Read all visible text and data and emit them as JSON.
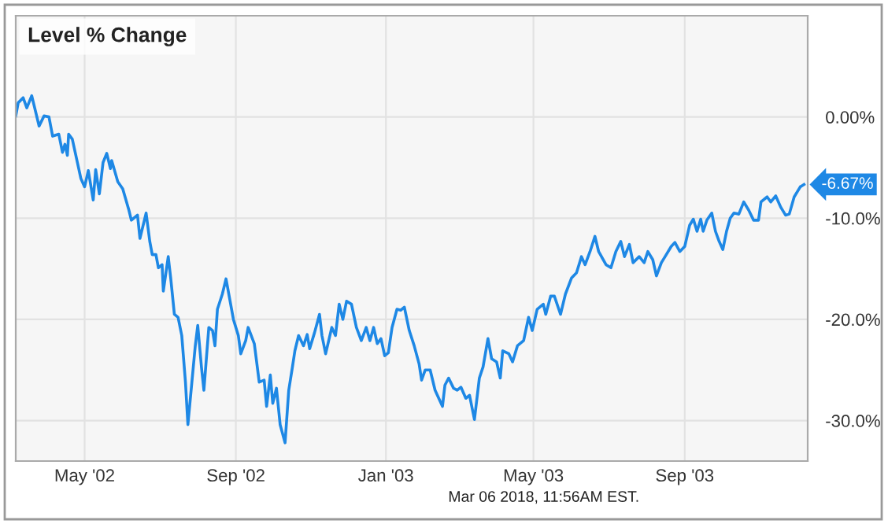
{
  "chart_data": {
    "type": "line",
    "title": "Level % Change",
    "annotations": [
      {
        "text": "-6.67%",
        "x": "2003-12-07",
        "y": -6.67
      },
      "Mar 06 2018, 11:56AM EST."
    ],
    "x": [
      "2002-03-06",
      "2002-03-08",
      "2002-03-12",
      "2002-03-15",
      "2002-03-19",
      "2002-03-25",
      "2002-03-29",
      "2002-04-02",
      "2002-04-05",
      "2002-04-10",
      "2002-04-13",
      "2002-04-15",
      "2002-04-17",
      "2002-04-18",
      "2002-04-21",
      "2002-04-28",
      "2002-05-01",
      "2002-05-04",
      "2002-05-08",
      "2002-05-10",
      "2002-05-13",
      "2002-05-16",
      "2002-05-19",
      "2002-05-22",
      "2002-05-23",
      "2002-05-28",
      "2002-06-01",
      "2002-06-06",
      "2002-06-08",
      "2002-06-13",
      "2002-06-15",
      "2002-06-20",
      "2002-06-23",
      "2002-06-25",
      "2002-06-28",
      "2002-06-30",
      "2002-07-03",
      "2002-07-04",
      "2002-07-08",
      "2002-07-10",
      "2002-07-13",
      "2002-07-16",
      "2002-07-19",
      "2002-07-22",
      "2002-07-24",
      "2002-07-27",
      "2002-07-30",
      "2002-08-01",
      "2002-08-04",
      "2002-08-06",
      "2002-08-10",
      "2002-08-13",
      "2002-08-15",
      "2002-08-17",
      "2002-08-21",
      "2002-08-24",
      "2002-08-27",
      "2002-08-30",
      "2002-09-03",
      "2002-09-05",
      "2002-09-09",
      "2002-09-11",
      "2002-09-16",
      "2002-09-20",
      "2002-09-24",
      "2002-09-26",
      "2002-09-29",
      "2002-10-01",
      "2002-10-04",
      "2002-10-07",
      "2002-10-11",
      "2002-10-14",
      "2002-10-17",
      "2002-10-19",
      "2002-10-22",
      "2002-10-26",
      "2002-10-29",
      "2002-10-31",
      "2002-11-04",
      "2002-11-08",
      "2002-11-10",
      "2002-11-13",
      "2002-11-18",
      "2002-11-21",
      "2002-11-24",
      "2002-11-27",
      "2002-11-30",
      "2002-12-04",
      "2002-12-08",
      "2002-12-12",
      "2002-12-16",
      "2002-12-19",
      "2002-12-22",
      "2002-12-25",
      "2002-12-28",
      "2002-12-31",
      "2003-01-03",
      "2003-01-06",
      "2003-01-10",
      "2003-01-13",
      "2003-01-16",
      "2003-01-20",
      "2003-01-24",
      "2003-01-28",
      "2003-01-30",
      "2003-02-02",
      "2003-02-06",
      "2003-02-10",
      "2003-02-16",
      "2003-02-18",
      "2003-02-21",
      "2003-02-25",
      "2003-02-28",
      "2003-03-03",
      "2003-03-07",
      "2003-03-10",
      "2003-03-14",
      "2003-03-18",
      "2003-03-21",
      "2003-03-25",
      "2003-03-28",
      "2003-04-01",
      "2003-04-04",
      "2003-04-06",
      "2003-04-11",
      "2003-04-14",
      "2003-04-18",
      "2003-04-23",
      "2003-04-27",
      "2003-04-30",
      "2003-05-04",
      "2003-05-09",
      "2003-05-11",
      "2003-05-15",
      "2003-05-18",
      "2003-05-23",
      "2003-05-27",
      "2003-06-01",
      "2003-06-05",
      "2003-06-09",
      "2003-06-12",
      "2003-06-16",
      "2003-06-20",
      "2003-06-23",
      "2003-06-29",
      "2003-07-03",
      "2003-07-07",
      "2003-07-11",
      "2003-07-14",
      "2003-07-18",
      "2003-07-21",
      "2003-07-26",
      "2003-07-30",
      "2003-08-02",
      "2003-08-06",
      "2003-08-09",
      "2003-08-13",
      "2003-08-17",
      "2003-08-21",
      "2003-08-24",
      "2003-08-28",
      "2003-09-01",
      "2003-09-05",
      "2003-09-08",
      "2003-09-11",
      "2003-09-14",
      "2003-09-16",
      "2003-09-19",
      "2003-09-23",
      "2003-09-26",
      "2003-09-29",
      "2003-10-02",
      "2003-10-05",
      "2003-10-08",
      "2003-10-11",
      "2003-10-15",
      "2003-10-19",
      "2003-10-23",
      "2003-10-27",
      "2003-10-31",
      "2003-11-02",
      "2003-11-07",
      "2003-11-10",
      "2003-11-14",
      "2003-11-18",
      "2003-11-22",
      "2003-11-25",
      "2003-11-29",
      "2003-12-04",
      "2003-12-07"
    ],
    "series": [
      {
        "color": "#1e88e5",
        "values": [
          0.1,
          1.4,
          1.9,
          0.9,
          2.1,
          -0.9,
          0.1,
          0,
          -1.9,
          -1.7,
          -3.5,
          -2.7,
          -3.8,
          -1.7,
          -2.2,
          -6.1,
          -6.9,
          -5.3,
          -8.2,
          -5.2,
          -7.6,
          -4.5,
          -3.6,
          -5.1,
          -4.3,
          -6.4,
          -7.1,
          -9.2,
          -10.2,
          -9.7,
          -12.0,
          -9.5,
          -12.3,
          -13.6,
          -13.6,
          -14.9,
          -14.6,
          -17.2,
          -13.8,
          -15.9,
          -19.5,
          -19.8,
          -21.6,
          -26.2,
          -30.4,
          -26.5,
          -22.6,
          -20.6,
          -24.7,
          -27.0,
          -20.8,
          -21.1,
          -22.6,
          -19.0,
          -17.5,
          -16.0,
          -18.0,
          -20.0,
          -21.6,
          -23.4,
          -22.1,
          -20.8,
          -22.4,
          -26.2,
          -26.0,
          -28.6,
          -25.5,
          -28.3,
          -26.8,
          -30.4,
          -32.2,
          -27.0,
          -24.7,
          -23.1,
          -21.6,
          -22.6,
          -21.5,
          -22.9,
          -21.3,
          -19.5,
          -21.6,
          -23.4,
          -20.8,
          -21.6,
          -18.5,
          -20.0,
          -18.2,
          -18.5,
          -20.8,
          -22.1,
          -20.8,
          -22.1,
          -20.8,
          -22.4,
          -21.9,
          -23.6,
          -23.3,
          -20.8,
          -19.0,
          -19.1,
          -18.8,
          -21.1,
          -22.6,
          -24.4,
          -26.0,
          -25.0,
          -25.0,
          -27.0,
          -28.6,
          -26.5,
          -25.8,
          -26.8,
          -27.0,
          -26.7,
          -27.8,
          -27.5,
          -29.9,
          -25.8,
          -24.7,
          -21.9,
          -23.9,
          -24.2,
          -25.8,
          -23.1,
          -23.4,
          -24.2,
          -22.6,
          -22.1,
          -19.8,
          -21.1,
          -19.0,
          -18.5,
          -19.5,
          -17.7,
          -17.7,
          -19.5,
          -17.5,
          -15.9,
          -15.4,
          -13.8,
          -14.6,
          -13.3,
          -11.8,
          -13.3,
          -14.6,
          -14.9,
          -13.3,
          -12.3,
          -13.8,
          -12.6,
          -14.4,
          -13.8,
          -14.4,
          -13.3,
          -14.1,
          -15.7,
          -14.4,
          -13.6,
          -12.8,
          -12.4,
          -13.3,
          -12.8,
          -10.7,
          -10.1,
          -11.3,
          -10.1,
          -11.3,
          -10.2,
          -9.5,
          -11.3,
          -12.3,
          -13.1,
          -11.3,
          -10.0,
          -9.5,
          -9.6,
          -8.4,
          -9.2,
          -10.2,
          -10.2,
          -8.4,
          -7.9,
          -8.4,
          -7.8,
          -8.9,
          -9.7,
          -9.6,
          -7.9,
          -6.9,
          -6.67
        ]
      }
    ],
    "xlim": [
      "2002-03-06",
      "2003-12-10"
    ],
    "xticks": [
      {
        "value": "2002-05-01",
        "label": "May '02"
      },
      {
        "value": "2002-09-01",
        "label": "Sep '02"
      },
      {
        "value": "2003-01-01",
        "label": "Jan '03"
      },
      {
        "value": "2003-05-01",
        "label": "May '03"
      },
      {
        "value": "2003-09-01",
        "label": "Sep '03"
      }
    ],
    "ylim": [
      -34,
      10
    ],
    "yticks": [
      {
        "value": 0,
        "label": "0.00%"
      },
      {
        "value": -10,
        "label": "-10.0%"
      },
      {
        "value": -20,
        "label": "-20.0%"
      },
      {
        "value": -30,
        "label": "-30.0%"
      }
    ],
    "grid": true,
    "line_style": "solid",
    "marker": "none",
    "legend": false
  }
}
